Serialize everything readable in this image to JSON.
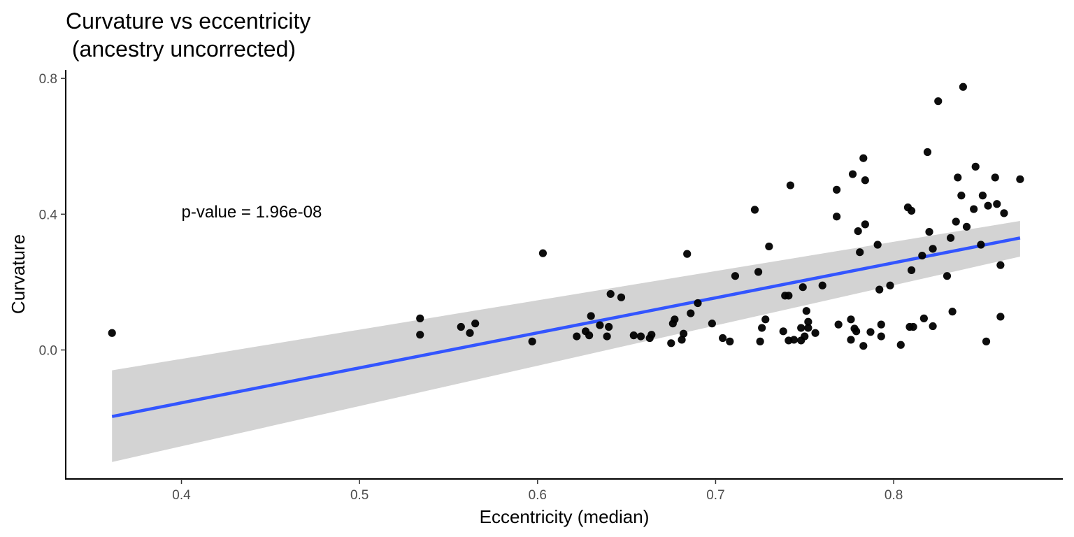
{
  "chart_data": {
    "type": "scatter",
    "title": "Curvature vs eccentricity",
    "subtitle": "(ancestry uncorrected)",
    "xlabel": "Eccentricity (median)",
    "ylabel": "Curvature",
    "xlim": [
      0.335,
      0.895
    ],
    "ylim": [
      -0.38,
      0.825
    ],
    "xticks": [
      0.4,
      0.5,
      0.6,
      0.7,
      0.8
    ],
    "xtick_labels": [
      "0.4",
      "0.5",
      "0.6",
      "0.7",
      "0.8"
    ],
    "yticks": [
      0.0,
      0.4,
      0.8
    ],
    "ytick_labels": [
      "0.0",
      "0.4",
      "0.8"
    ],
    "grid": false,
    "annotation": {
      "text": "p-value = 1.96e-08",
      "x": 0.4,
      "y": 0.39
    },
    "point_color": "#000000",
    "fit_color": "#3355ff",
    "ci_color": "#d3d3d3",
    "fit_line": {
      "x": [
        0.361,
        0.871
      ],
      "y": [
        -0.196,
        0.33
      ]
    },
    "ci_band": {
      "x": [
        0.361,
        0.871
      ],
      "upper": [
        -0.06,
        0.38
      ],
      "lower": [
        -0.33,
        0.275
      ]
    },
    "points": [
      {
        "x": 0.361,
        "y": 0.05
      },
      {
        "x": 0.534,
        "y": 0.093
      },
      {
        "x": 0.534,
        "y": 0.045
      },
      {
        "x": 0.557,
        "y": 0.068
      },
      {
        "x": 0.562,
        "y": 0.05
      },
      {
        "x": 0.565,
        "y": 0.078
      },
      {
        "x": 0.597,
        "y": 0.025
      },
      {
        "x": 0.603,
        "y": 0.285
      },
      {
        "x": 0.622,
        "y": 0.04
      },
      {
        "x": 0.627,
        "y": 0.055
      },
      {
        "x": 0.629,
        "y": 0.043
      },
      {
        "x": 0.63,
        "y": 0.1
      },
      {
        "x": 0.635,
        "y": 0.073
      },
      {
        "x": 0.639,
        "y": 0.04
      },
      {
        "x": 0.64,
        "y": 0.068
      },
      {
        "x": 0.641,
        "y": 0.165
      },
      {
        "x": 0.647,
        "y": 0.155
      },
      {
        "x": 0.654,
        "y": 0.043
      },
      {
        "x": 0.658,
        "y": 0.04
      },
      {
        "x": 0.663,
        "y": 0.035
      },
      {
        "x": 0.664,
        "y": 0.045
      },
      {
        "x": 0.675,
        "y": 0.02
      },
      {
        "x": 0.676,
        "y": 0.078
      },
      {
        "x": 0.677,
        "y": 0.09
      },
      {
        "x": 0.681,
        "y": 0.03
      },
      {
        "x": 0.682,
        "y": 0.048
      },
      {
        "x": 0.684,
        "y": 0.283
      },
      {
        "x": 0.686,
        "y": 0.108
      },
      {
        "x": 0.69,
        "y": 0.138
      },
      {
        "x": 0.698,
        "y": 0.078
      },
      {
        "x": 0.704,
        "y": 0.035
      },
      {
        "x": 0.708,
        "y": 0.025
      },
      {
        "x": 0.711,
        "y": 0.218
      },
      {
        "x": 0.722,
        "y": 0.413
      },
      {
        "x": 0.724,
        "y": 0.23
      },
      {
        "x": 0.725,
        "y": 0.025
      },
      {
        "x": 0.726,
        "y": 0.065
      },
      {
        "x": 0.728,
        "y": 0.09
      },
      {
        "x": 0.73,
        "y": 0.305
      },
      {
        "x": 0.738,
        "y": 0.055
      },
      {
        "x": 0.739,
        "y": 0.16
      },
      {
        "x": 0.741,
        "y": 0.028
      },
      {
        "x": 0.741,
        "y": 0.16
      },
      {
        "x": 0.742,
        "y": 0.485
      },
      {
        "x": 0.744,
        "y": 0.03
      },
      {
        "x": 0.748,
        "y": 0.065
      },
      {
        "x": 0.748,
        "y": 0.028
      },
      {
        "x": 0.749,
        "y": 0.185
      },
      {
        "x": 0.75,
        "y": 0.04
      },
      {
        "x": 0.751,
        "y": 0.115
      },
      {
        "x": 0.752,
        "y": 0.083
      },
      {
        "x": 0.752,
        "y": 0.065
      },
      {
        "x": 0.756,
        "y": 0.05
      },
      {
        "x": 0.76,
        "y": 0.19
      },
      {
        "x": 0.768,
        "y": 0.393
      },
      {
        "x": 0.768,
        "y": 0.472
      },
      {
        "x": 0.769,
        "y": 0.075
      },
      {
        "x": 0.776,
        "y": 0.03
      },
      {
        "x": 0.776,
        "y": 0.09
      },
      {
        "x": 0.777,
        "y": 0.518
      },
      {
        "x": 0.778,
        "y": 0.063
      },
      {
        "x": 0.779,
        "y": 0.055
      },
      {
        "x": 0.78,
        "y": 0.35
      },
      {
        "x": 0.781,
        "y": 0.288
      },
      {
        "x": 0.783,
        "y": 0.565
      },
      {
        "x": 0.783,
        "y": 0.012
      },
      {
        "x": 0.784,
        "y": 0.37
      },
      {
        "x": 0.784,
        "y": 0.5
      },
      {
        "x": 0.787,
        "y": 0.053
      },
      {
        "x": 0.791,
        "y": 0.31
      },
      {
        "x": 0.792,
        "y": 0.178
      },
      {
        "x": 0.793,
        "y": 0.075
      },
      {
        "x": 0.793,
        "y": 0.04
      },
      {
        "x": 0.798,
        "y": 0.19
      },
      {
        "x": 0.804,
        "y": 0.015
      },
      {
        "x": 0.808,
        "y": 0.42
      },
      {
        "x": 0.809,
        "y": 0.068
      },
      {
        "x": 0.81,
        "y": 0.41
      },
      {
        "x": 0.81,
        "y": 0.235
      },
      {
        "x": 0.811,
        "y": 0.068
      },
      {
        "x": 0.816,
        "y": 0.278
      },
      {
        "x": 0.817,
        "y": 0.093
      },
      {
        "x": 0.819,
        "y": 0.583
      },
      {
        "x": 0.82,
        "y": 0.348
      },
      {
        "x": 0.822,
        "y": 0.298
      },
      {
        "x": 0.822,
        "y": 0.07
      },
      {
        "x": 0.825,
        "y": 0.733
      },
      {
        "x": 0.83,
        "y": 0.218
      },
      {
        "x": 0.832,
        "y": 0.33
      },
      {
        "x": 0.833,
        "y": 0.113
      },
      {
        "x": 0.835,
        "y": 0.378
      },
      {
        "x": 0.836,
        "y": 0.508
      },
      {
        "x": 0.838,
        "y": 0.455
      },
      {
        "x": 0.839,
        "y": 0.775
      },
      {
        "x": 0.841,
        "y": 0.363
      },
      {
        "x": 0.845,
        "y": 0.415
      },
      {
        "x": 0.846,
        "y": 0.54
      },
      {
        "x": 0.849,
        "y": 0.31
      },
      {
        "x": 0.85,
        "y": 0.455
      },
      {
        "x": 0.852,
        "y": 0.025
      },
      {
        "x": 0.853,
        "y": 0.425
      },
      {
        "x": 0.857,
        "y": 0.508
      },
      {
        "x": 0.858,
        "y": 0.43
      },
      {
        "x": 0.86,
        "y": 0.098
      },
      {
        "x": 0.86,
        "y": 0.25
      },
      {
        "x": 0.862,
        "y": 0.403
      },
      {
        "x": 0.871,
        "y": 0.503
      }
    ]
  }
}
